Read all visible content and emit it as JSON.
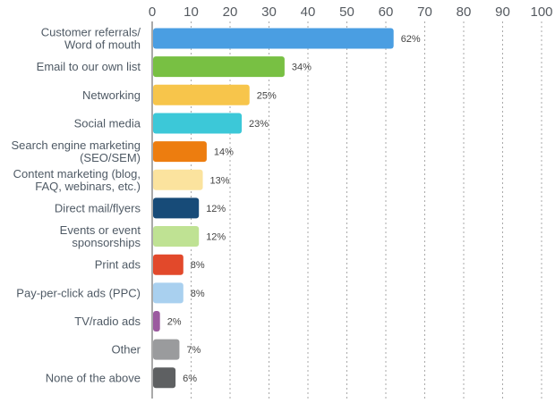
{
  "chart_data": {
    "type": "bar",
    "orientation": "horizontal",
    "title": "",
    "xlabel": "",
    "ylabel": "",
    "xlim": [
      0,
      100
    ],
    "x_ticks": [
      0,
      10,
      20,
      30,
      40,
      50,
      60,
      70,
      80,
      90,
      100
    ],
    "x_axis_position": "top",
    "grid": "vertical dotted",
    "legend": "none",
    "value_suffix": "%",
    "categories": [
      [
        "Customer referrals/",
        "Word of mouth"
      ],
      [
        "Email to our own list"
      ],
      [
        "Networking"
      ],
      [
        "Social media"
      ],
      [
        "Search engine marketing",
        "(SEO/SEM)"
      ],
      [
        "Content marketing (blog,",
        "FAQ, webinars, etc.)"
      ],
      [
        "Direct mail/flyers"
      ],
      [
        "Events or event",
        "sponsorships"
      ],
      [
        "Print ads"
      ],
      [
        "Pay-per-click ads (PPC)"
      ],
      [
        "TV/radio ads"
      ],
      [
        "Other"
      ],
      [
        "None of the above"
      ]
    ],
    "values": [
      62,
      34,
      25,
      23,
      14,
      13,
      12,
      12,
      8,
      8,
      2,
      7,
      6
    ],
    "colors": [
      "#4a9ee2",
      "#78c043",
      "#f7c54b",
      "#3cc8d8",
      "#ed7d0f",
      "#fbe39e",
      "#174b78",
      "#bfe293",
      "#e2492b",
      "#a9d0ef",
      "#9b5b9f",
      "#9a9b9d",
      "#5e6062"
    ]
  }
}
